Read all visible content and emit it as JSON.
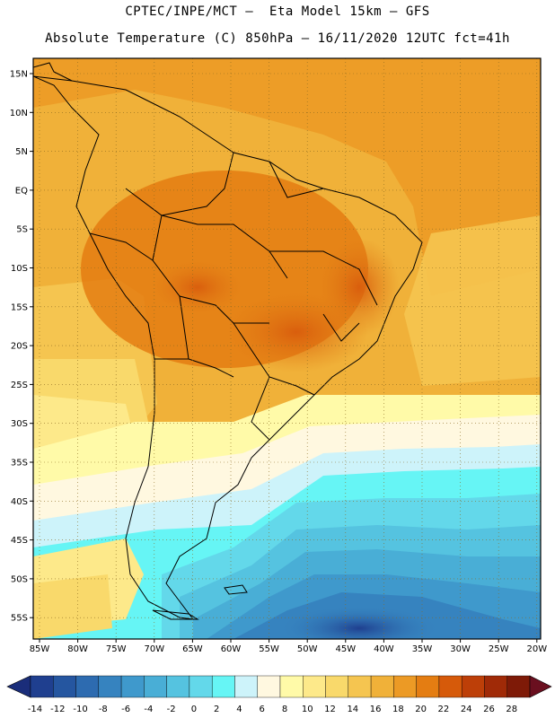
{
  "title": {
    "line1": "CPTEC/INPE/MCT –  Eta Model 15km – GFS",
    "line2": "Absolute Temperature (C) 850hPa – 16/11/2020 12UTC fct=41h"
  },
  "axes": {
    "lat_labels": [
      "15N",
      "10N",
      "5N",
      "EQ",
      "5S",
      "10S",
      "15S",
      "20S",
      "25S",
      "30S",
      "35S",
      "40S",
      "45S",
      "50S",
      "55S"
    ],
    "lon_labels": [
      "85W",
      "80W",
      "75W",
      "70W",
      "65W",
      "60W",
      "55W",
      "50W",
      "45W",
      "40W",
      "35W",
      "30W",
      "25W",
      "20W"
    ]
  },
  "colorbar": {
    "ticks": [
      "-14",
      "-12",
      "-10",
      "-8",
      "-6",
      "-4",
      "-2",
      "0",
      "2",
      "4",
      "6",
      "8",
      "10",
      "12",
      "14",
      "16",
      "18",
      "20",
      "22",
      "24",
      "26",
      "28"
    ],
    "colors": [
      "#1f3f8f",
      "#2556a0",
      "#2d6bb0",
      "#3683bf",
      "#3f99cc",
      "#49aed6",
      "#55c3e0",
      "#63d8ea",
      "#66f5f5",
      "#cdf3fa",
      "#fff8e0",
      "#fffaa8",
      "#fde98a",
      "#f9d96b",
      "#f5c550",
      "#f0b139",
      "#ec9a25",
      "#e47d12",
      "#d65a0a",
      "#bd3f08",
      "#a02a07",
      "#7e1a07"
    ],
    "under_color": "#1a2d7a",
    "over_color": "#6a0f1f"
  }
}
